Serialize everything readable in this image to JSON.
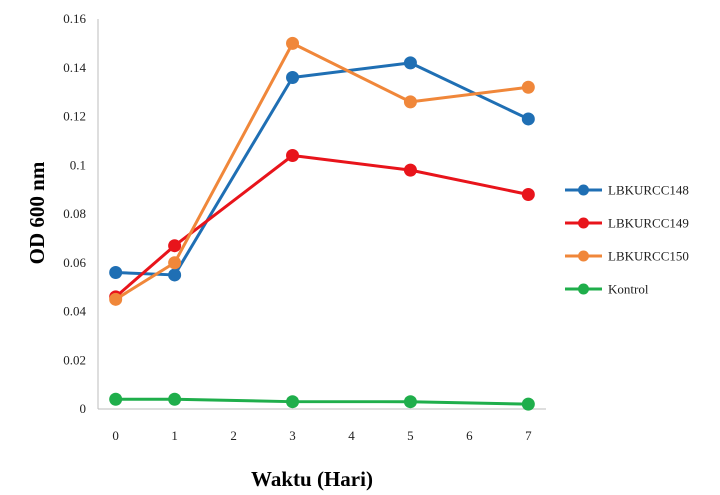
{
  "chart_data": {
    "type": "line",
    "title": "",
    "xlabel": "Waktu (Hari)",
    "ylabel": "OD 600 nm",
    "xlim": [
      -0.3,
      7.3
    ],
    "ylim": [
      0,
      0.16
    ],
    "x_ticks": [
      "0",
      "1",
      "2",
      "3",
      "4",
      "5",
      "6",
      "7"
    ],
    "y_ticks": [
      "0",
      "0.02",
      "0.04",
      "0.06",
      "0.08",
      "0.1",
      "0.12",
      "0.14",
      "0.16"
    ],
    "grid": false,
    "legend_position": "right",
    "x": [
      0,
      1,
      3,
      5,
      7
    ],
    "series": [
      {
        "name": "LBKURCC148",
        "color": "#1f6fb4",
        "values": [
          0.056,
          0.055,
          0.136,
          0.142,
          0.119
        ]
      },
      {
        "name": "LBKURCC149",
        "color": "#e8141b",
        "values": [
          0.046,
          0.067,
          0.104,
          0.098,
          0.088
        ]
      },
      {
        "name": "LBKURCC150",
        "color": "#f0873a",
        "values": [
          0.045,
          0.06,
          0.15,
          0.126,
          0.132
        ]
      },
      {
        "name": "Kontrol",
        "color": "#1fae4b",
        "values": [
          0.004,
          0.004,
          0.003,
          0.003,
          0.002
        ]
      }
    ]
  }
}
